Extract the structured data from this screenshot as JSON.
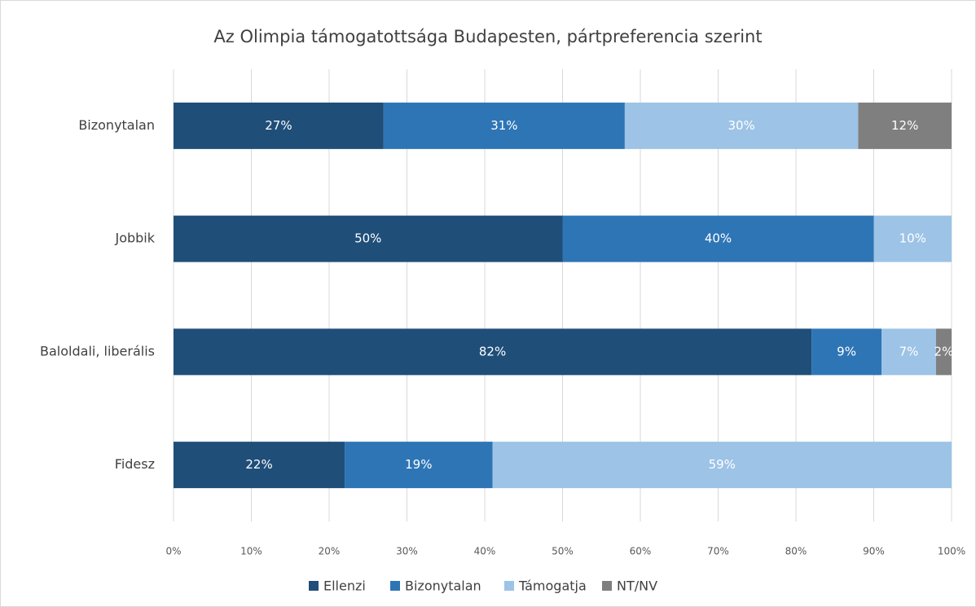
{
  "chart_data": {
    "type": "stacked_barh",
    "title": "Az Olimpia támogatottsága Budapesten, pártpreferencia szerint",
    "categories": [
      "Bizonytalan",
      "Jobbik",
      "Baloldali, liberális",
      "Fidesz"
    ],
    "series": [
      {
        "name": "Ellenzi",
        "color": "#1f4e79",
        "values": [
          27,
          50,
          82,
          22
        ],
        "value_labels": [
          "27%",
          "50%",
          "82%",
          "22%"
        ]
      },
      {
        "name": "Bizonytalan",
        "color": "#2e75b6",
        "values": [
          31,
          40,
          9,
          19
        ],
        "value_labels": [
          "31%",
          "40%",
          "9%",
          "19%"
        ]
      },
      {
        "name": "Támogatja",
        "color": "#9dc3e6",
        "values": [
          30,
          10,
          7,
          59
        ],
        "value_labels": [
          "30%",
          "10%",
          "7%",
          "59%"
        ]
      },
      {
        "name": "NT/NV",
        "color": "#7f7f7f",
        "values": [
          12,
          null,
          2,
          null
        ],
        "value_labels": [
          "12%",
          null,
          "2%",
          null
        ]
      }
    ],
    "xlim": [
      0,
      100
    ],
    "xticks": [
      {
        "value": 0,
        "label": "0%"
      },
      {
        "value": 10,
        "label": "10%"
      },
      {
        "value": 20,
        "label": "20%"
      },
      {
        "value": 30,
        "label": "30%"
      },
      {
        "value": 40,
        "label": "40%"
      },
      {
        "value": 50,
        "label": "50%"
      },
      {
        "value": 60,
        "label": "60%"
      },
      {
        "value": 70,
        "label": "70%"
      },
      {
        "value": 80,
        "label": "80%"
      },
      {
        "value": 90,
        "label": "90%"
      },
      {
        "value": 100,
        "label": "100%"
      }
    ],
    "grid": true,
    "legend": "bottom"
  }
}
